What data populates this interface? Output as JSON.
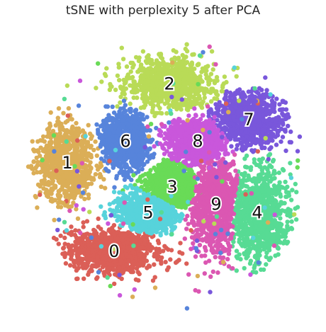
{
  "chart_data": {
    "type": "scatter",
    "title": "tSNE with perplexity 5 after PCA",
    "xlabel": "",
    "ylabel": "",
    "axes_visible": false,
    "grid": false,
    "xlim": [
      -100,
      100
    ],
    "ylim": [
      -100,
      100
    ],
    "series": [
      {
        "label": "0",
        "color": "#db5f57",
        "center": [
          -37,
          -54
        ],
        "spread": [
          30,
          15
        ]
      },
      {
        "label": "1",
        "color": "#dbae57",
        "center": [
          -70,
          8
        ],
        "spread": [
          19,
          24
        ]
      },
      {
        "label": "2",
        "color": "#b9db57",
        "center": [
          2,
          63
        ],
        "spread": [
          30,
          16
        ]
      },
      {
        "label": "3",
        "color": "#69db57",
        "center": [
          4,
          -9
        ],
        "spread": [
          18,
          15
        ]
      },
      {
        "label": "4",
        "color": "#57db94",
        "center": [
          64,
          -27
        ],
        "spread": [
          21,
          29
        ]
      },
      {
        "label": "5",
        "color": "#57d3db",
        "center": [
          -13,
          -27
        ],
        "spread": [
          20,
          13
        ]
      },
      {
        "label": "6",
        "color": "#5784db",
        "center": [
          -29,
          23
        ],
        "spread": [
          16,
          19
        ]
      },
      {
        "label": "7",
        "color": "#7957db",
        "center": [
          58,
          38
        ],
        "spread": [
          23,
          17
        ]
      },
      {
        "label": "8",
        "color": "#c957db",
        "center": [
          22,
          23
        ],
        "spread": [
          19,
          15
        ]
      },
      {
        "label": "9",
        "color": "#db57b2",
        "center": [
          35,
          -21
        ],
        "spread": [
          17,
          30
        ]
      }
    ]
  }
}
